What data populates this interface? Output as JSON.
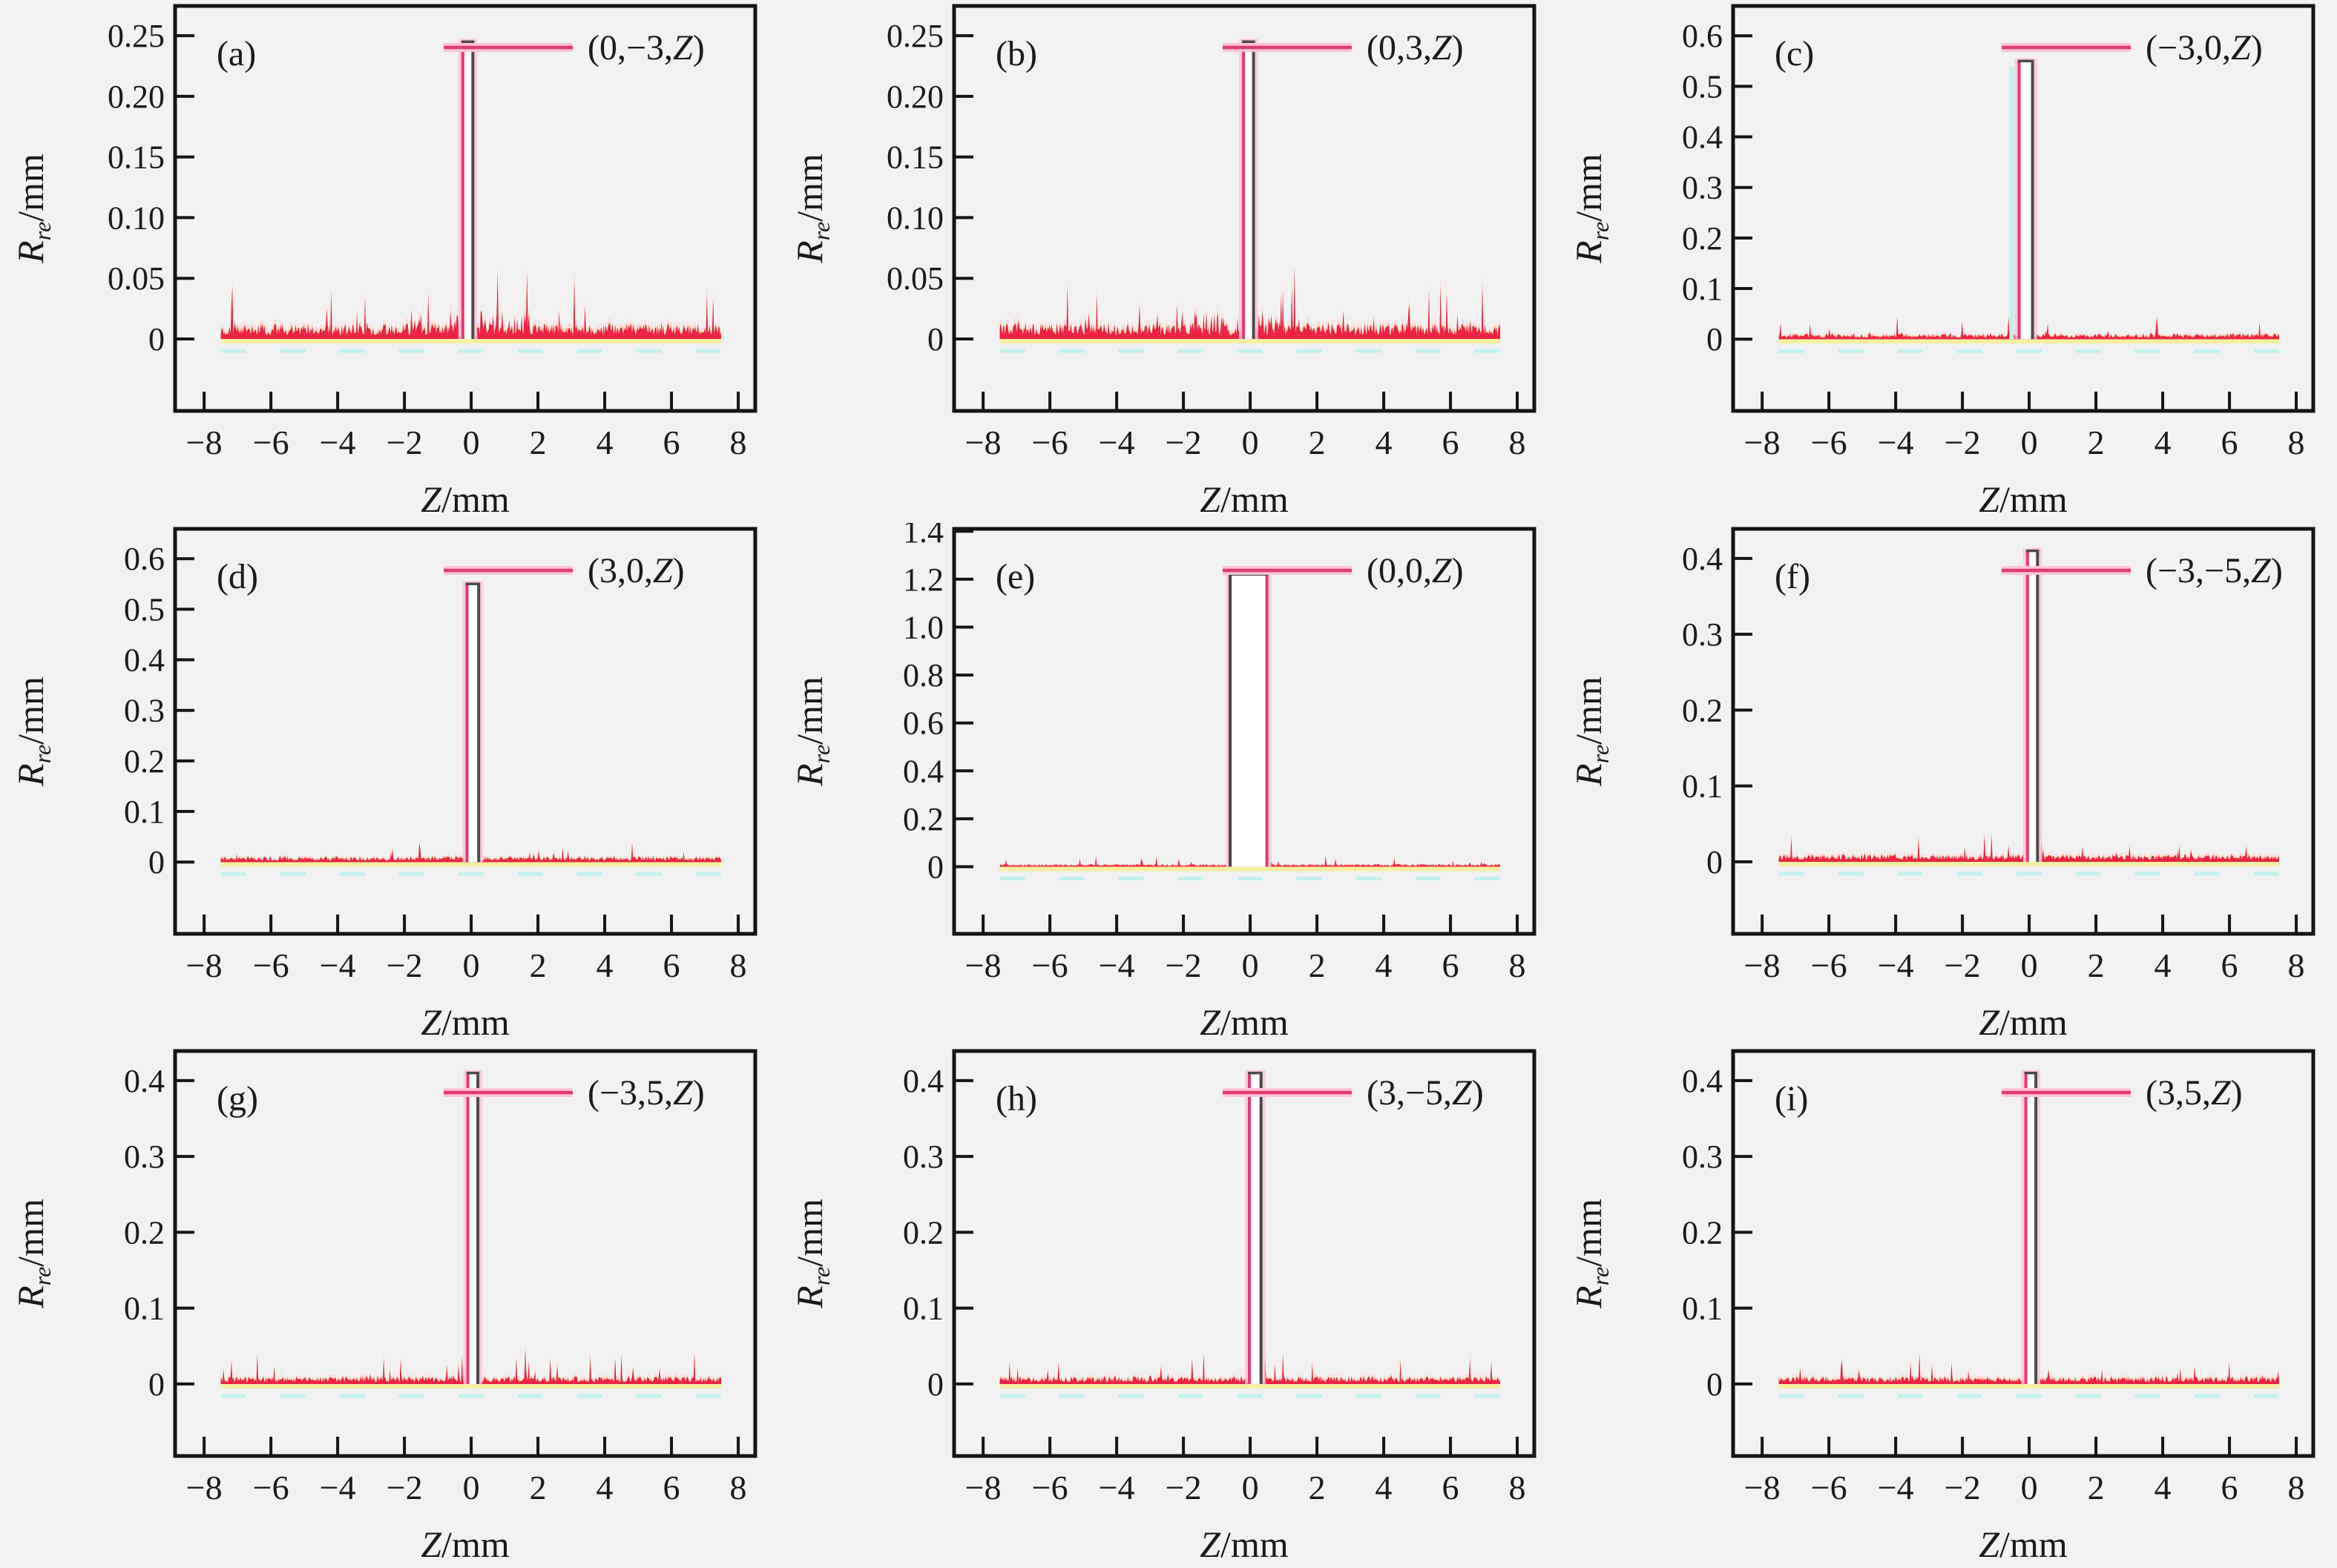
{
  "figure": {
    "background": "#f2f2f2",
    "axis_color": "#141414",
    "text_color": "#1a1a1a",
    "xlabel_italic": "Z",
    "xlabel_rest": "/mm",
    "ylabel_italic": "R",
    "ylabel_sub": "re",
    "ylabel_rest": "/mm",
    "legend_z_italic": "Z",
    "legend_close": ")",
    "xlim": [
      -8.87,
      8.51
    ],
    "x_tick_values": [
      -8,
      -6,
      -4,
      -2,
      0,
      2,
      4,
      6,
      8
    ],
    "x_tick_labels": [
      "−8",
      "−6",
      "−4",
      "−2",
      "0",
      "2",
      "4",
      "6",
      "8"
    ],
    "grid": "off",
    "legend_position": "top-right-inside",
    "colors": {
      "crimson_line": "#e23a6e",
      "pink_halo": "#ffc4dd",
      "noise_red": "#ee2245",
      "noise_dark": "#3f3f3f",
      "noise_yellow": "#f7f0a2",
      "noise_pink": "#ffd6e6",
      "cyan": "#c2f2ee",
      "spike_top": "#4a4a4a",
      "spike_fill": "#ffffff"
    }
  },
  "chart_data": [
    {
      "type": "line",
      "panel_label": "(a)",
      "legend_pre": "(0,−3,",
      "xlabel": "Z/mm",
      "ylabel": "Rre/mm",
      "x_range_of_data": [
        -7.5,
        7.5
      ],
      "y_ticks": [
        0,
        0.05,
        0.1,
        0.15,
        0.2,
        0.25
      ],
      "y_tick_labels": [
        "0",
        "0.05",
        "0.10",
        "0.15",
        "0.20",
        "0.25"
      ],
      "ylim": [
        -0.0593,
        0.2745
      ],
      "peak": {
        "center": -0.1,
        "width": 0.3,
        "height": 0.245
      },
      "noise": {
        "floor": 0.013,
        "max": 0.055,
        "boost_near_center": true
      },
      "seed": 101,
      "dark_edge": "right",
      "cyan_edge": false
    },
    {
      "type": "line",
      "panel_label": "(b)",
      "legend_pre": "(0,3,",
      "xlabel": "Z/mm",
      "ylabel": "Rre/mm",
      "x_range_of_data": [
        -7.5,
        7.5
      ],
      "y_ticks": [
        0,
        0.05,
        0.1,
        0.15,
        0.2,
        0.25
      ],
      "y_tick_labels": [
        "0",
        "0.05",
        "0.10",
        "0.15",
        "0.20",
        "0.25"
      ],
      "ylim": [
        -0.0593,
        0.2745
      ],
      "peak": {
        "center": -0.05,
        "width": 0.3,
        "height": 0.245
      },
      "noise": {
        "floor": 0.013,
        "max": 0.055,
        "boost_near_center": true
      },
      "seed": 102,
      "dark_edge": "right",
      "cyan_edge": false
    },
    {
      "type": "line",
      "panel_label": "(c)",
      "legend_pre": "(−3,0,",
      "xlabel": "Z/mm",
      "ylabel": "Rre/mm",
      "x_range_of_data": [
        -7.5,
        7.5
      ],
      "y_ticks": [
        0,
        0.1,
        0.2,
        0.3,
        0.4,
        0.5,
        0.6
      ],
      "y_tick_labels": [
        "0",
        "0.1",
        "0.2",
        "0.3",
        "0.4",
        "0.5",
        "0.6"
      ],
      "ylim": [
        -0.142,
        0.659
      ],
      "peak": {
        "center": -0.1,
        "width": 0.4,
        "height": 0.55
      },
      "noise": {
        "floor": 0.011,
        "max": 0.05,
        "boost_near_center": false
      },
      "seed": 103,
      "dark_edge": "right",
      "cyan_edge": true
    },
    {
      "type": "line",
      "panel_label": "(d)",
      "legend_pre": "(3,0,",
      "xlabel": "Z/mm",
      "ylabel": "Rre/mm",
      "x_range_of_data": [
        -7.5,
        7.5
      ],
      "y_ticks": [
        0,
        0.1,
        0.2,
        0.3,
        0.4,
        0.5,
        0.6
      ],
      "y_tick_labels": [
        "0",
        "0.1",
        "0.2",
        "0.3",
        "0.4",
        "0.5",
        "0.6"
      ],
      "ylim": [
        -0.142,
        0.659
      ],
      "peak": {
        "center": 0.05,
        "width": 0.35,
        "height": 0.55
      },
      "noise": {
        "floor": 0.011,
        "max": 0.05,
        "boost_near_center": false
      },
      "seed": 104,
      "dark_edge": "right",
      "cyan_edge": false
    },
    {
      "type": "line",
      "panel_label": "(e)",
      "legend_pre": "(0,0,",
      "xlabel": "Z/mm",
      "ylabel": "Rre/mm",
      "x_range_of_data": [
        -7.5,
        7.5
      ],
      "y_ticks": [
        0,
        0.2,
        0.4,
        0.6,
        0.8,
        1.0,
        1.2,
        1.4
      ],
      "y_tick_labels": [
        "0",
        "0.2",
        "0.4",
        "0.6",
        "0.8",
        "1.0",
        "1.2",
        "1.4"
      ],
      "ylim": [
        -0.28,
        1.41
      ],
      "peak": {
        "center": -0.05,
        "width": 1.1,
        "height": 1.22
      },
      "noise": {
        "floor": 0.011,
        "max": 0.05,
        "boost_near_center": false
      },
      "seed": 105,
      "dark_edge": "left",
      "cyan_edge": false
    },
    {
      "type": "line",
      "panel_label": "(f)",
      "legend_pre": "(−3,−5,",
      "xlabel": "Z/mm",
      "ylabel": "Rre/mm",
      "x_range_of_data": [
        -7.5,
        7.5
      ],
      "y_ticks": [
        0,
        0.1,
        0.2,
        0.3,
        0.4
      ],
      "y_tick_labels": [
        "0",
        "0.1",
        "0.2",
        "0.3",
        "0.4"
      ],
      "ylim": [
        -0.095,
        0.439
      ],
      "peak": {
        "center": 0.1,
        "width": 0.3,
        "height": 0.41
      },
      "noise": {
        "floor": 0.01,
        "max": 0.045,
        "boost_near_center": false
      },
      "seed": 106,
      "dark_edge": "right",
      "cyan_edge": false
    },
    {
      "type": "line",
      "panel_label": "(g)",
      "legend_pre": "(−3,5,",
      "xlabel": "Z/mm",
      "ylabel": "Rre/mm",
      "x_range_of_data": [
        -7.5,
        7.5
      ],
      "y_ticks": [
        0,
        0.1,
        0.2,
        0.3,
        0.4
      ],
      "y_tick_labels": [
        "0",
        "0.1",
        "0.2",
        "0.3",
        "0.4"
      ],
      "ylim": [
        -0.095,
        0.439
      ],
      "peak": {
        "center": 0.05,
        "width": 0.3,
        "height": 0.41
      },
      "noise": {
        "floor": 0.01,
        "max": 0.045,
        "boost_near_center": false
      },
      "seed": 107,
      "dark_edge": "right",
      "cyan_edge": false
    },
    {
      "type": "line",
      "panel_label": "(h)",
      "legend_pre": "(3,−5,",
      "xlabel": "Z/mm",
      "ylabel": "Rre/mm",
      "x_range_of_data": [
        -7.5,
        7.5
      ],
      "y_ticks": [
        0,
        0.1,
        0.2,
        0.3,
        0.4
      ],
      "y_tick_labels": [
        "0",
        "0.1",
        "0.2",
        "0.3",
        "0.4"
      ],
      "ylim": [
        -0.095,
        0.439
      ],
      "peak": {
        "center": 0.15,
        "width": 0.35,
        "height": 0.41
      },
      "noise": {
        "floor": 0.01,
        "max": 0.045,
        "boost_near_center": false
      },
      "seed": 108,
      "dark_edge": "right",
      "cyan_edge": false
    },
    {
      "type": "line",
      "panel_label": "(i)",
      "legend_pre": "(3,5,",
      "xlabel": "Z/mm",
      "ylabel": "Rre/mm",
      "x_range_of_data": [
        -7.5,
        7.5
      ],
      "y_ticks": [
        0,
        0.1,
        0.2,
        0.3,
        0.4
      ],
      "y_tick_labels": [
        "0",
        "0.1",
        "0.2",
        "0.3",
        "0.4"
      ],
      "ylim": [
        -0.095,
        0.439
      ],
      "peak": {
        "center": 0.05,
        "width": 0.3,
        "height": 0.41
      },
      "noise": {
        "floor": 0.01,
        "max": 0.045,
        "boost_near_center": false
      },
      "seed": 109,
      "dark_edge": "right",
      "cyan_edge": false
    }
  ]
}
